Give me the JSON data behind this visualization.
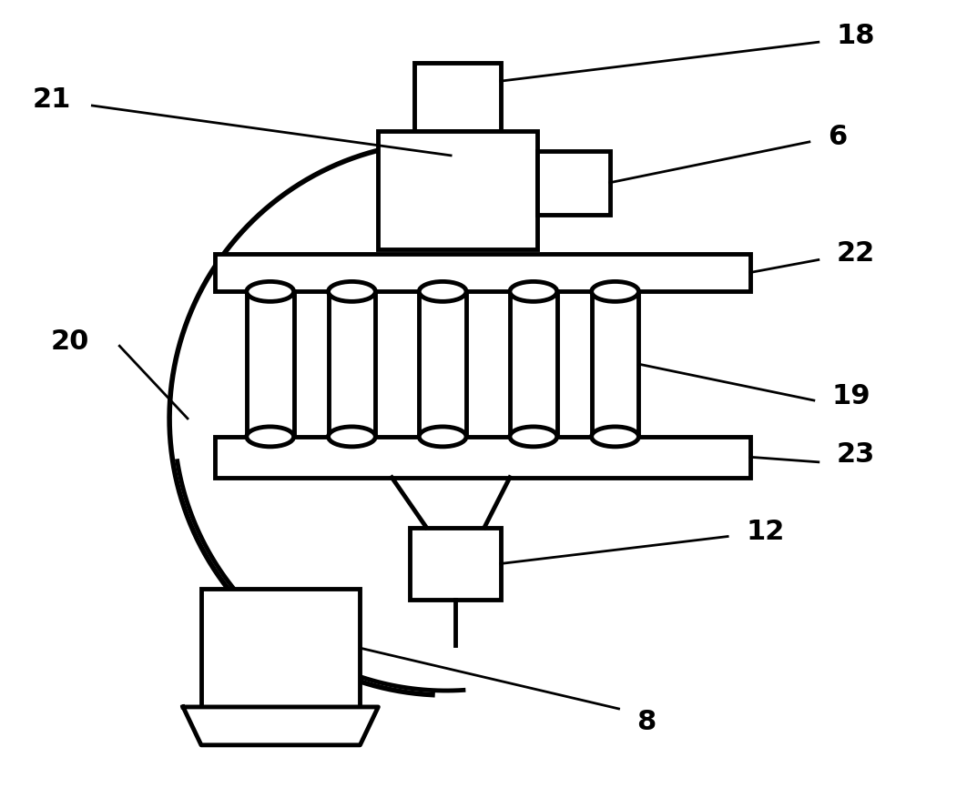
{
  "figsize": [
    10.62,
    8.88
  ],
  "dpi": 100,
  "bg_color": "white",
  "line_color": "black",
  "line_width": 3.5,
  "label_fontsize": 22,
  "label_fontweight": "bold"
}
